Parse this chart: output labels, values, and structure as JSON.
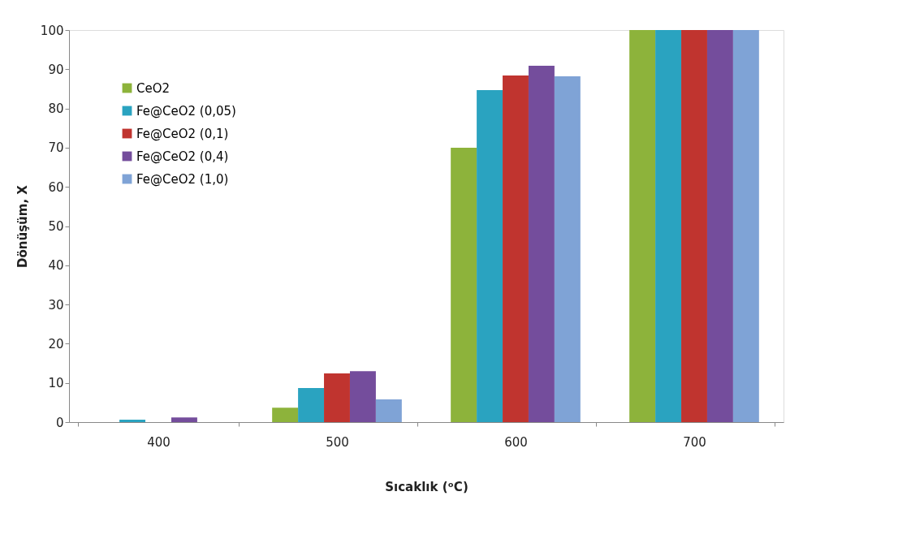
{
  "chart_data": {
    "type": "bar",
    "xlabel": "Sıcaklık (ᵒC)",
    "ylabel": "Dönüşüm, X",
    "categories": [
      "400",
      "500",
      "600",
      "700"
    ],
    "series": [
      {
        "name": "CeO2",
        "color": "#8db33b",
        "values": [
          0,
          3.7,
          70,
          100
        ]
      },
      {
        "name": "Fe@CeO2 (0,05)",
        "color": "#2aa3c0",
        "values": [
          0.6,
          8.7,
          84.7,
          100
        ]
      },
      {
        "name": "Fe@CeO2 (0,1)",
        "color": "#c0342f",
        "values": [
          0,
          12.4,
          88.4,
          100
        ]
      },
      {
        "name": "Fe@CeO2 (0,4)",
        "color": "#744d9c",
        "values": [
          1.2,
          13,
          90.9,
          100
        ]
      },
      {
        "name": "Fe@CeO2 (1,0)",
        "color": "#7fa3d6",
        "values": [
          0,
          5.8,
          88.2,
          100
        ]
      }
    ],
    "ylim": [
      0,
      100
    ],
    "yticks": [
      0,
      10,
      20,
      30,
      40,
      50,
      60,
      70,
      80,
      90,
      100
    ],
    "grid": false,
    "legend": "top left"
  }
}
